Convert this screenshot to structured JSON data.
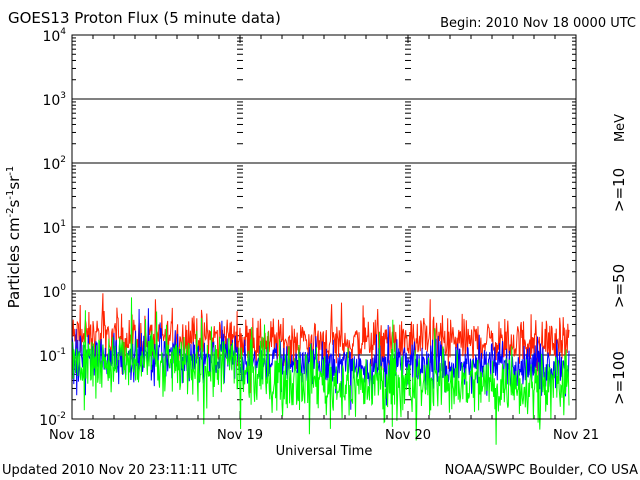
{
  "chart_data": {
    "type": "line",
    "title": "GOES13 Proton Flux (5 minute data)",
    "begin_label": "Begin: 2010 Nov 18 0000 UTC",
    "xlabel": "Universal Time",
    "ylabel": "Particles cm⁻²s⁻¹sr⁻¹",
    "ylabel_parts": {
      "main": "Particles cm",
      "e1": "-2",
      "s": "s",
      "e2": "-1",
      "sr": "sr",
      "e3": "-1"
    },
    "y_scale": "log",
    "ylim": [
      0.01,
      10000
    ],
    "y_ticks": [
      {
        "base": "10",
        "exp": "4"
      },
      {
        "base": "10",
        "exp": "3"
      },
      {
        "base": "10",
        "exp": "2"
      },
      {
        "base": "10",
        "exp": "1"
      },
      {
        "base": "10",
        "exp": "0"
      },
      {
        "base": "10",
        "exp": "-1"
      },
      {
        "base": "10",
        "exp": "-2"
      }
    ],
    "x_ticks": [
      "Nov 18",
      "Nov 19",
      "Nov 20",
      "Nov 21"
    ],
    "xlim_days": [
      0,
      3
    ],
    "data_end_day": 2.96,
    "thresholds": [
      {
        "value": 1000,
        "style": "solid"
      },
      {
        "value": 100,
        "style": "solid"
      },
      {
        "value": 10,
        "style": "dashed"
      },
      {
        "value": 1,
        "style": "solid"
      },
      {
        "value": 0.1,
        "style": "solid"
      }
    ],
    "legend_unit": "MeV",
    "series": [
      {
        "name": ">=10",
        "color": "#ff2200",
        "level_by_day": [
          0.19,
          0.19,
          0.17,
          0.16,
          0.165,
          0.16,
          0.16
        ],
        "spread": 0.16
      },
      {
        "name": ">=50",
        "color": "#0000ff",
        "level_by_day": [
          0.095,
          0.095,
          0.08,
          0.07,
          0.07,
          0.068,
          0.068
        ],
        "spread": 0.15
      },
      {
        "name": ">=100",
        "color": "#00ff00",
        "level_by_day": [
          0.075,
          0.07,
          0.045,
          0.035,
          0.036,
          0.035,
          0.034
        ],
        "spread": 0.22
      }
    ]
  },
  "footer": {
    "updated": "Updated 2010 Nov 20 23:11:11 UTC",
    "credit": "NOAA/SWPC Boulder, CO USA"
  }
}
